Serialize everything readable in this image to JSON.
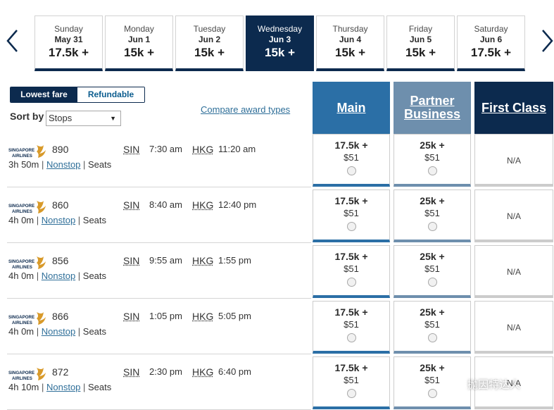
{
  "dates": [
    {
      "dow": "Sunday",
      "date": "May 31",
      "price": "17.5k +",
      "active": false
    },
    {
      "dow": "Monday",
      "date": "Jun 1",
      "price": "15k +",
      "active": false
    },
    {
      "dow": "Tuesday",
      "date": "Jun 2",
      "price": "15k +",
      "active": false
    },
    {
      "dow": "Wednesday",
      "date": "Jun 3",
      "price": "15k +",
      "active": true
    },
    {
      "dow": "Thursday",
      "date": "Jun 4",
      "price": "15k +",
      "active": false
    },
    {
      "dow": "Friday",
      "date": "Jun 5",
      "price": "15k +",
      "active": false
    },
    {
      "dow": "Saturday",
      "date": "Jun 6",
      "price": "17.5k +",
      "active": false
    }
  ],
  "fare_toggle": {
    "lowest": "Lowest fare",
    "refundable": "Refundable",
    "selected": "Lowest fare"
  },
  "sort": {
    "label": "Sort by",
    "value": "Stops"
  },
  "compare_link": "Compare award types",
  "cabins": {
    "main": "Main",
    "partner_line1": "Partner",
    "partner_line2": "Business",
    "first": "First Class"
  },
  "flights": [
    {
      "flight_no": "890",
      "origin": "SIN",
      "depart": "7:30 am",
      "dest": "HKG",
      "arrive": "11:20 am",
      "duration": "3h 50m",
      "stops": "Nonstop",
      "seats": "Seats",
      "main": {
        "miles": "17.5k +",
        "tax": "$51"
      },
      "partner": {
        "miles": "25k +",
        "tax": "$51"
      },
      "first": "N/A"
    },
    {
      "flight_no": "860",
      "origin": "SIN",
      "depart": "8:40 am",
      "dest": "HKG",
      "arrive": "12:40 pm",
      "duration": "4h 0m",
      "stops": "Nonstop",
      "seats": "Seats",
      "main": {
        "miles": "17.5k +",
        "tax": "$51"
      },
      "partner": {
        "miles": "25k +",
        "tax": "$51"
      },
      "first": "N/A"
    },
    {
      "flight_no": "856",
      "origin": "SIN",
      "depart": "9:55 am",
      "dest": "HKG",
      "arrive": "1:55 pm",
      "duration": "4h 0m",
      "stops": "Nonstop",
      "seats": "Seats",
      "main": {
        "miles": "17.5k +",
        "tax": "$51"
      },
      "partner": {
        "miles": "25k +",
        "tax": "$51"
      },
      "first": "N/A"
    },
    {
      "flight_no": "866",
      "origin": "SIN",
      "depart": "1:05 pm",
      "dest": "HKG",
      "arrive": "5:05 pm",
      "duration": "4h 0m",
      "stops": "Nonstop",
      "seats": "Seats",
      "main": {
        "miles": "17.5k +",
        "tax": "$51"
      },
      "partner": {
        "miles": "25k +",
        "tax": "$51"
      },
      "first": "N/A"
    },
    {
      "flight_no": "872",
      "origin": "SIN",
      "depart": "2:30 pm",
      "dest": "HKG",
      "arrive": "6:40 pm",
      "duration": "4h 10m",
      "stops": "Nonstop",
      "seats": "Seats",
      "main": {
        "miles": "17.5k +",
        "tax": "$51"
      },
      "partner": {
        "miles": "25k +",
        "tax": "$51"
      },
      "first": "N/A"
    }
  ],
  "airline_logo": {
    "line1": "SINGAPORE",
    "line2": "AIRLINES"
  },
  "watermark": "抛因特达人",
  "colors": {
    "navy": "#0c2a4e",
    "main": "#2b6fa6",
    "partner": "#6e8fad",
    "link": "#2f6f99",
    "logo_gold": "#d89a2a"
  },
  "icons": {
    "prev": "chevron-left-icon",
    "next": "chevron-right-icon",
    "logo": "singapore-airlines-logo",
    "watermark": "wechat-icon"
  }
}
